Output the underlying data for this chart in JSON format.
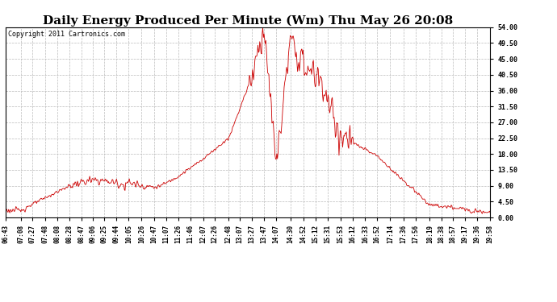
{
  "title": "Daily Energy Produced Per Minute (Wm) Thu May 26 20:08",
  "copyright": "Copyright 2011 Cartronics.com",
  "yticks": [
    0.0,
    4.5,
    9.0,
    13.5,
    18.0,
    22.5,
    27.0,
    31.5,
    36.0,
    40.5,
    45.0,
    49.5,
    54.0
  ],
  "ymin": 0.0,
  "ymax": 54.0,
  "line_color": "#cc0000",
  "bg_color": "#ffffff",
  "grid_color": "#bbbbbb",
  "title_fontsize": 11,
  "copyright_fontsize": 6,
  "x_tick_labels": [
    "06:43",
    "07:08",
    "07:27",
    "07:48",
    "08:08",
    "08:28",
    "08:47",
    "09:06",
    "09:25",
    "09:44",
    "10:05",
    "10:26",
    "10:47",
    "11:07",
    "11:26",
    "11:46",
    "12:07",
    "12:26",
    "12:48",
    "13:07",
    "13:27",
    "13:47",
    "14:07",
    "14:30",
    "14:52",
    "15:12",
    "15:31",
    "15:53",
    "16:12",
    "16:33",
    "16:52",
    "17:14",
    "17:36",
    "17:56",
    "18:19",
    "18:38",
    "18:57",
    "19:17",
    "19:36",
    "19:58"
  ]
}
